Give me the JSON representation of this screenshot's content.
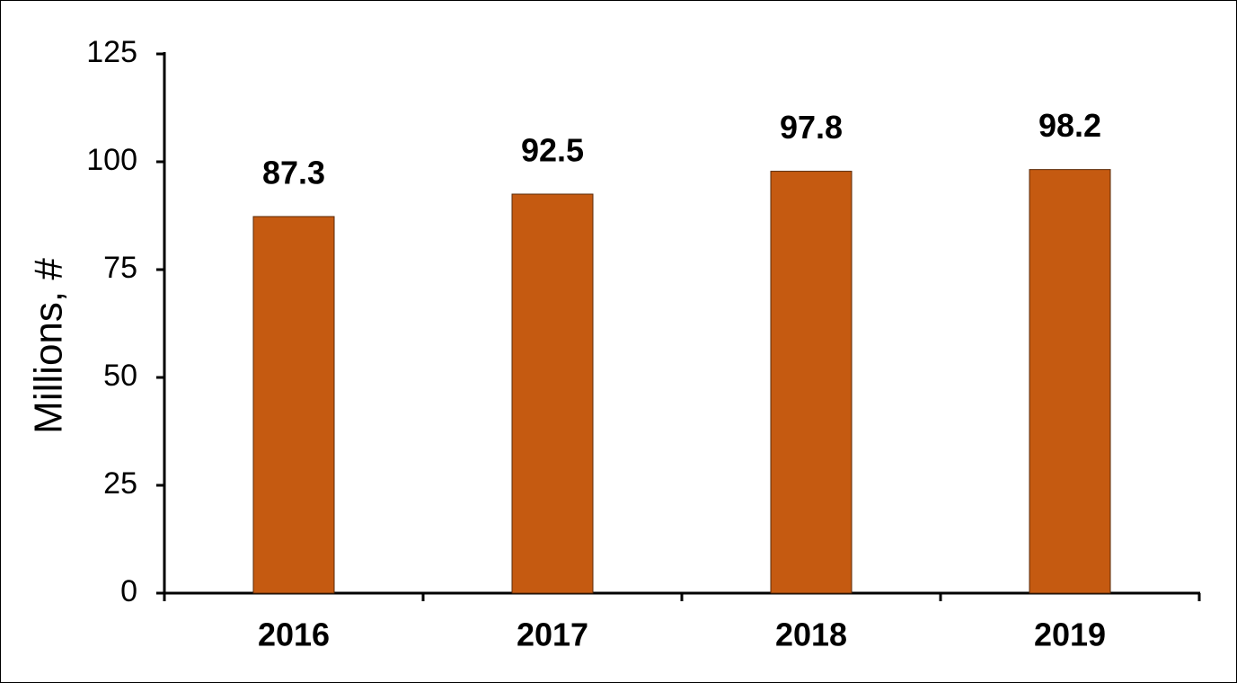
{
  "chart_data": {
    "type": "bar",
    "y_label": "Millions, #",
    "categories": [
      "2016",
      "2017",
      "2018",
      "2019"
    ],
    "values": [
      87.3,
      92.5,
      97.8,
      98.2
    ],
    "color": "#c55a11",
    "ylim": [
      0,
      125
    ],
    "yticks": [
      0,
      25,
      50,
      75,
      100,
      125
    ],
    "grid": false
  }
}
